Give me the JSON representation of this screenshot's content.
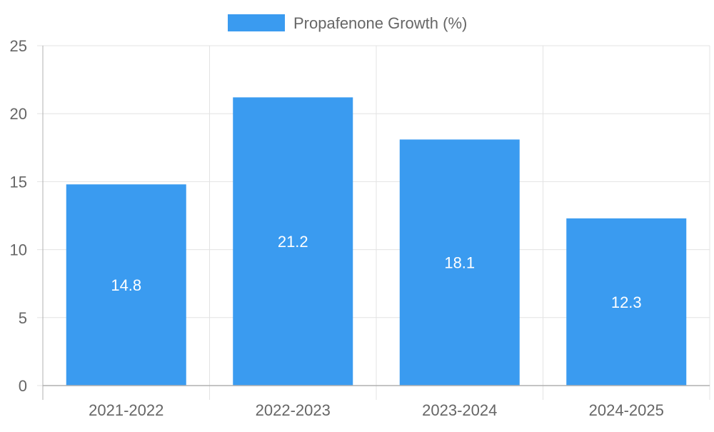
{
  "chart_data": {
    "type": "bar",
    "title": "",
    "xlabel": "",
    "ylabel": "",
    "categories": [
      "2021-2022",
      "2022-2023",
      "2023-2024",
      "2024-2025"
    ],
    "series": [
      {
        "name": "Propafenone Growth (%)",
        "values": [
          14.8,
          21.2,
          18.1,
          12.3
        ],
        "color": "#3a9bf0"
      }
    ],
    "ylim": [
      0,
      25
    ],
    "yticks": [
      0,
      5,
      10,
      15,
      20,
      25
    ],
    "grid": true,
    "legend": "top-center",
    "data_labels": [
      "14.8",
      "21.2",
      "18.1",
      "12.3"
    ],
    "colors": {
      "bar": "#3a9bf0",
      "grid": "#e3e3e3",
      "axis": "#b0b0b0",
      "tick_text": "#666666",
      "label_text": "#ffffff",
      "legend_text": "#666666"
    }
  }
}
